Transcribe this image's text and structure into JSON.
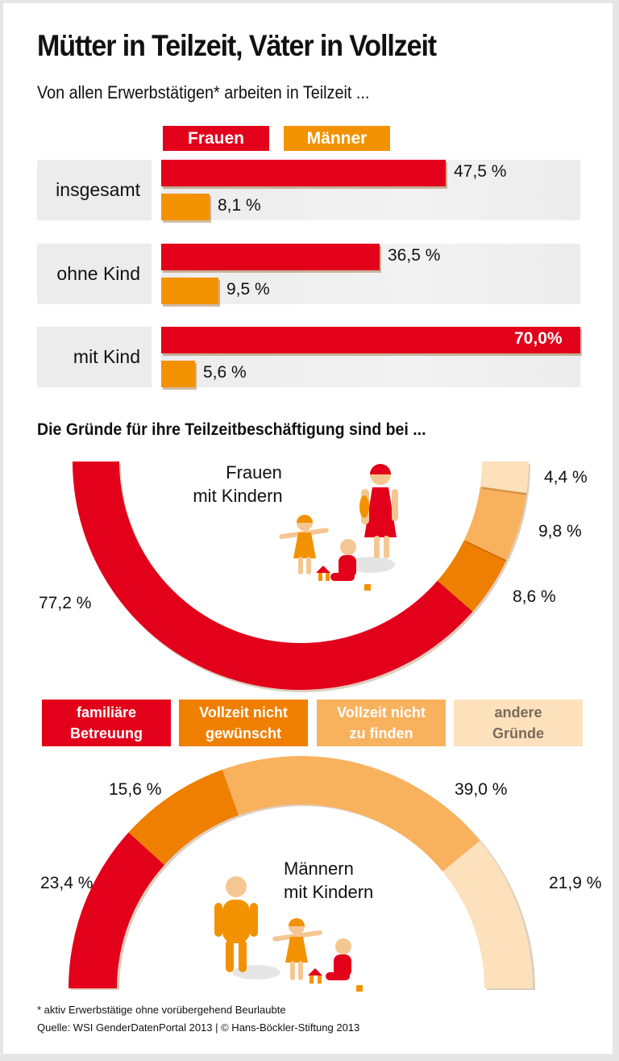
{
  "header": {
    "title": "Mütter in Teilzeit, Väter in Vollzeit",
    "subtitle": "Von allen Erwerbstätigen* arbeiten in Teilzeit ..."
  },
  "colors": {
    "frauen": "#e2001a",
    "maenner": "#f39200",
    "familiaere_betreuung": "#e2001a",
    "vollzeit_nicht_gewuenscht": "#ee7f00",
    "vollzeit_nicht_zu_finden": "#f8b25e",
    "andere_gruende": "#fde0bc"
  },
  "chart_data": [
    {
      "type": "bar",
      "title": "Von allen Erwerbstätigen* arbeiten in Teilzeit ...",
      "orientation": "horizontal",
      "categories": [
        "insgesamt",
        "ohne Kind",
        "mit Kind"
      ],
      "legend": [
        "Frauen",
        "Männer"
      ],
      "legend_position": "top",
      "xlim": [
        0,
        70
      ],
      "series": [
        {
          "name": "Frauen",
          "values": [
            47.5,
            36.5,
            70.0
          ],
          "labels": [
            "47,5 %",
            "36,5 %",
            "70,0%"
          ]
        },
        {
          "name": "Männer",
          "values": [
            8.1,
            9.5,
            5.6
          ],
          "labels": [
            "8,1 %",
            "9,5 %",
            "5,6 %"
          ]
        }
      ]
    },
    {
      "type": "pie",
      "variant": "half-donut",
      "title": "Die Gründe für ihre Teilzeitbeschäftigung sind bei ...",
      "center_label": [
        "Frauen",
        "mit Kindern"
      ],
      "categories": [
        "familiäre Betreuung",
        "Vollzeit nicht gewünscht",
        "Vollzeit nicht zu finden",
        "andere Gründe"
      ],
      "values": [
        77.2,
        8.6,
        9.8,
        4.4
      ],
      "labels": [
        "77,2 %",
        "8,6 %",
        "9,8 %",
        "4,4 %"
      ]
    },
    {
      "type": "pie",
      "variant": "half-donut",
      "center_label": [
        "Männern",
        "mit Kindern"
      ],
      "categories": [
        "familiäre Betreuung",
        "Vollzeit nicht gewünscht",
        "Vollzeit nicht zu finden",
        "andere Gründe"
      ],
      "values": [
        23.4,
        15.6,
        39.0,
        21.9
      ],
      "labels": [
        "23,4 %",
        "15,6 %",
        "39,0 %",
        "21,9 %"
      ]
    }
  ],
  "reasons_legend": [
    {
      "line1": "familiäre",
      "line2": "Betreuung"
    },
    {
      "line1": "Vollzeit nicht",
      "line2": "gewünscht"
    },
    {
      "line1": "Vollzeit nicht",
      "line2": "zu finden"
    },
    {
      "line1": "andere",
      "line2": "Gründe"
    }
  ],
  "footer": {
    "footnote": "* aktiv Erwerbstätige ohne vorübergehend Beurlaubte",
    "source": "Quelle: WSI GenderDatenPortal 2013 | © Hans-Böckler-Stiftung 2013"
  }
}
